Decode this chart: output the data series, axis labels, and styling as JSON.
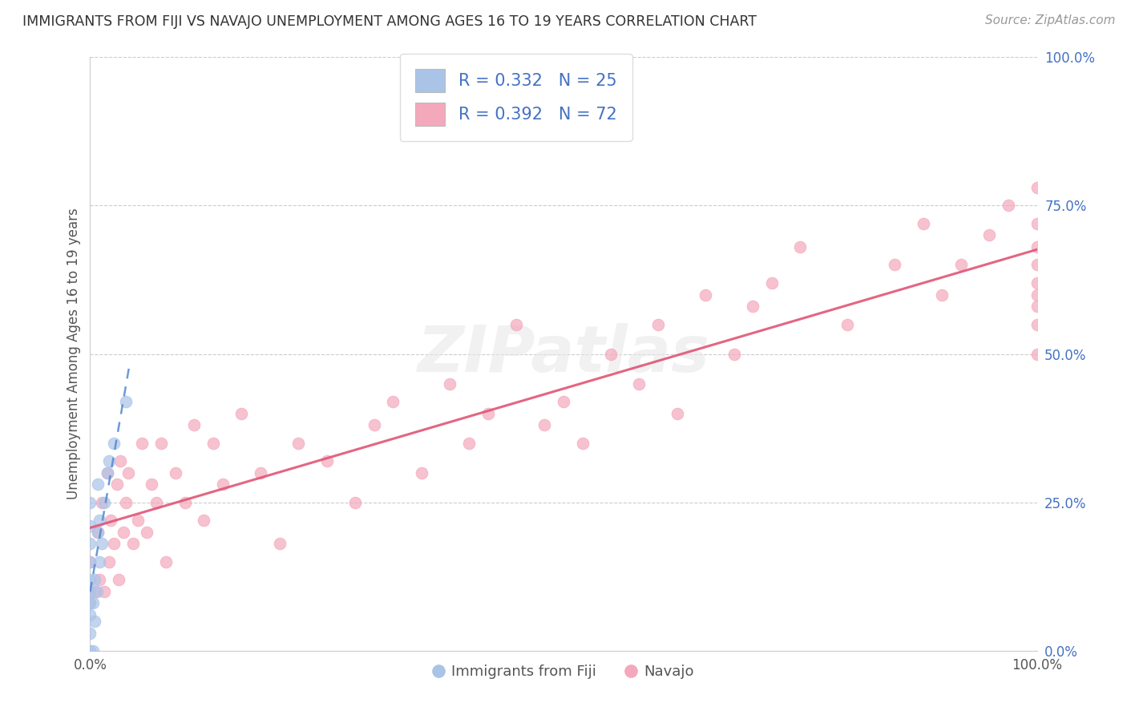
{
  "title": "IMMIGRANTS FROM FIJI VS NAVAJO UNEMPLOYMENT AMONG AGES 16 TO 19 YEARS CORRELATION CHART",
  "source": "Source: ZipAtlas.com",
  "ylabel": "Unemployment Among Ages 16 to 19 years",
  "xlim": [
    0.0,
    1.0
  ],
  "ylim": [
    0.0,
    1.0
  ],
  "xtick_labels": [
    "0.0%",
    "100.0%"
  ],
  "ytick_labels": [
    "0.0%",
    "25.0%",
    "50.0%",
    "75.0%",
    "100.0%"
  ],
  "ytick_values": [
    0.0,
    0.25,
    0.5,
    0.75,
    1.0
  ],
  "fiji_color": "#aac4e8",
  "navajo_color": "#f4a8bc",
  "fiji_line_color": "#5588cc",
  "navajo_line_color": "#e05575",
  "fiji_R": "0.332",
  "fiji_N": "25",
  "navajo_R": "0.392",
  "navajo_N": "72",
  "watermark_text": "ZIPatlas",
  "background_color": "#ffffff",
  "fiji_scatter_x": [
    0.0,
    0.0,
    0.0,
    0.0,
    0.0,
    0.0,
    0.0,
    0.0,
    0.0,
    0.0,
    0.003,
    0.003,
    0.005,
    0.005,
    0.007,
    0.008,
    0.008,
    0.01,
    0.01,
    0.012,
    0.015,
    0.018,
    0.02,
    0.025,
    0.038
  ],
  "fiji_scatter_y": [
    0.0,
    0.03,
    0.06,
    0.08,
    0.1,
    0.12,
    0.15,
    0.18,
    0.21,
    0.25,
    0.0,
    0.08,
    0.05,
    0.12,
    0.1,
    0.2,
    0.28,
    0.15,
    0.22,
    0.18,
    0.25,
    0.3,
    0.32,
    0.35,
    0.42
  ],
  "navajo_scatter_x": [
    0.0,
    0.0,
    0.005,
    0.008,
    0.01,
    0.012,
    0.015,
    0.018,
    0.02,
    0.022,
    0.025,
    0.028,
    0.03,
    0.032,
    0.035,
    0.038,
    0.04,
    0.045,
    0.05,
    0.055,
    0.06,
    0.065,
    0.07,
    0.075,
    0.08,
    0.09,
    0.1,
    0.11,
    0.12,
    0.13,
    0.14,
    0.16,
    0.18,
    0.2,
    0.22,
    0.25,
    0.28,
    0.3,
    0.32,
    0.35,
    0.38,
    0.4,
    0.42,
    0.45,
    0.48,
    0.5,
    0.52,
    0.55,
    0.58,
    0.6,
    0.62,
    0.65,
    0.68,
    0.7,
    0.72,
    0.75,
    0.8,
    0.85,
    0.88,
    0.9,
    0.92,
    0.95,
    0.97,
    1.0,
    1.0,
    1.0,
    1.0,
    1.0,
    1.0,
    1.0,
    1.0,
    1.0
  ],
  "navajo_scatter_y": [
    0.08,
    0.15,
    0.1,
    0.2,
    0.12,
    0.25,
    0.1,
    0.3,
    0.15,
    0.22,
    0.18,
    0.28,
    0.12,
    0.32,
    0.2,
    0.25,
    0.3,
    0.18,
    0.22,
    0.35,
    0.2,
    0.28,
    0.25,
    0.35,
    0.15,
    0.3,
    0.25,
    0.38,
    0.22,
    0.35,
    0.28,
    0.4,
    0.3,
    0.18,
    0.35,
    0.32,
    0.25,
    0.38,
    0.42,
    0.3,
    0.45,
    0.35,
    0.4,
    0.55,
    0.38,
    0.42,
    0.35,
    0.5,
    0.45,
    0.55,
    0.4,
    0.6,
    0.5,
    0.58,
    0.62,
    0.68,
    0.55,
    0.65,
    0.72,
    0.6,
    0.65,
    0.7,
    0.75,
    0.5,
    0.55,
    0.58,
    0.6,
    0.62,
    0.65,
    0.68,
    0.72,
    0.78
  ]
}
